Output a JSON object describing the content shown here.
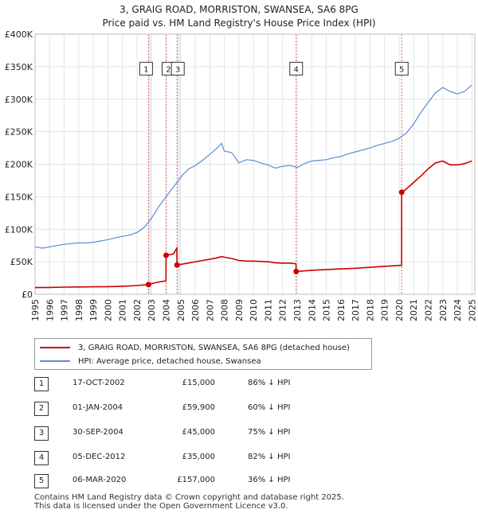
{
  "chart_data": {
    "type": "line",
    "title": "3, GRAIG ROAD, MORRISTON, SWANSEA, SA6 8PG",
    "subtitle": "Price paid vs. HM Land Registry's House Price Index (HPI)",
    "xlim": [
      1995,
      2025.2
    ],
    "ylim": [
      0,
      400000
    ],
    "x_ticks": [
      "1995",
      "1996",
      "1997",
      "1998",
      "1999",
      "2000",
      "2001",
      "2002",
      "2003",
      "2004",
      "2005",
      "2006",
      "2007",
      "2008",
      "2009",
      "2010",
      "2011",
      "2012",
      "2013",
      "2014",
      "2015",
      "2016",
      "2017",
      "2018",
      "2019",
      "2020",
      "2021",
      "2022",
      "2023",
      "2024",
      "2025"
    ],
    "y_ticks": [
      {
        "value": 0,
        "label": "£0"
      },
      {
        "value": 50000,
        "label": "£50K"
      },
      {
        "value": 100000,
        "label": "£100K"
      },
      {
        "value": 150000,
        "label": "£150K"
      },
      {
        "value": 200000,
        "label": "£200K"
      },
      {
        "value": 250000,
        "label": "£250K"
      },
      {
        "value": 300000,
        "label": "£300K"
      },
      {
        "value": 350000,
        "label": "£350K"
      },
      {
        "value": 400000,
        "label": "£400K"
      }
    ],
    "shade_ranges": [
      [
        2002.79,
        2003.0
      ],
      [
        2004.75,
        2005.0
      ]
    ],
    "series": [
      {
        "name": "HPI: Average price, detached house, Swansea",
        "color": "#5b8dd6",
        "points": [
          [
            1995.0,
            73000
          ],
          [
            1995.5,
            71000
          ],
          [
            1996.0,
            73000
          ],
          [
            1996.5,
            75000
          ],
          [
            1997.0,
            77000
          ],
          [
            1997.5,
            78000
          ],
          [
            1998.0,
            79000
          ],
          [
            1998.5,
            79000
          ],
          [
            1999.0,
            80000
          ],
          [
            1999.5,
            82000
          ],
          [
            2000.0,
            84000
          ],
          [
            2000.5,
            87000
          ],
          [
            2001.0,
            89000
          ],
          [
            2001.5,
            91000
          ],
          [
            2002.0,
            95000
          ],
          [
            2002.5,
            103000
          ],
          [
            2003.0,
            117000
          ],
          [
            2003.5,
            135000
          ],
          [
            2004.0,
            150000
          ],
          [
            2004.5,
            165000
          ],
          [
            2004.75,
            172000
          ],
          [
            2005.0,
            180000
          ],
          [
            2005.5,
            192000
          ],
          [
            2006.0,
            198000
          ],
          [
            2006.5,
            206000
          ],
          [
            2007.0,
            215000
          ],
          [
            2007.5,
            225000
          ],
          [
            2007.8,
            232000
          ],
          [
            2008.0,
            220000
          ],
          [
            2008.5,
            218000
          ],
          [
            2009.0,
            202000
          ],
          [
            2009.5,
            207000
          ],
          [
            2010.0,
            206000
          ],
          [
            2010.5,
            202000
          ],
          [
            2011.0,
            199000
          ],
          [
            2011.5,
            194000
          ],
          [
            2012.0,
            197000
          ],
          [
            2012.5,
            198000
          ],
          [
            2013.0,
            195000
          ],
          [
            2013.5,
            201000
          ],
          [
            2014.0,
            205000
          ],
          [
            2014.5,
            206000
          ],
          [
            2015.0,
            207000
          ],
          [
            2015.5,
            210000
          ],
          [
            2016.0,
            212000
          ],
          [
            2016.5,
            216000
          ],
          [
            2017.0,
            219000
          ],
          [
            2017.5,
            222000
          ],
          [
            2018.0,
            225000
          ],
          [
            2018.5,
            229000
          ],
          [
            2019.0,
            232000
          ],
          [
            2019.5,
            235000
          ],
          [
            2020.0,
            240000
          ],
          [
            2020.5,
            248000
          ],
          [
            2021.0,
            262000
          ],
          [
            2021.5,
            280000
          ],
          [
            2022.0,
            295000
          ],
          [
            2022.5,
            310000
          ],
          [
            2023.0,
            318000
          ],
          [
            2023.5,
            312000
          ],
          [
            2024.0,
            308000
          ],
          [
            2024.5,
            312000
          ],
          [
            2025.0,
            322000
          ]
        ]
      },
      {
        "name": "3, GRAIG ROAD, MORRISTON, SWANSEA, SA6 8PG (detached house)",
        "color": "#cc0000",
        "points": [
          [
            1995.0,
            10300
          ],
          [
            1996.0,
            10500
          ],
          [
            1997.0,
            11000
          ],
          [
            1998.0,
            11300
          ],
          [
            1999.0,
            11500
          ],
          [
            2000.0,
            11800
          ],
          [
            2001.0,
            12300
          ],
          [
            2002.0,
            13500
          ],
          [
            2002.79,
            15000
          ],
          [
            2003.0,
            16500
          ],
          [
            2003.5,
            19000
          ],
          [
            2003.99,
            20500
          ],
          [
            2004.0,
            59900
          ],
          [
            2004.5,
            62000
          ],
          [
            2004.74,
            71000
          ],
          [
            2004.75,
            45000
          ],
          [
            2005.0,
            46000
          ],
          [
            2005.5,
            48000
          ],
          [
            2006.0,
            50000
          ],
          [
            2006.5,
            52000
          ],
          [
            2007.0,
            54000
          ],
          [
            2007.5,
            56000
          ],
          [
            2007.8,
            58000
          ],
          [
            2008.0,
            57000
          ],
          [
            2008.5,
            55000
          ],
          [
            2009.0,
            52000
          ],
          [
            2009.5,
            51000
          ],
          [
            2010.0,
            51000
          ],
          [
            2010.5,
            50500
          ],
          [
            2011.0,
            50000
          ],
          [
            2011.5,
            48500
          ],
          [
            2012.0,
            48000
          ],
          [
            2012.5,
            48000
          ],
          [
            2012.92,
            47000
          ],
          [
            2012.93,
            35000
          ],
          [
            2013.5,
            36000
          ],
          [
            2014.0,
            37000
          ],
          [
            2015.0,
            38000
          ],
          [
            2016.0,
            39000
          ],
          [
            2017.0,
            40000
          ],
          [
            2018.0,
            41500
          ],
          [
            2019.0,
            43000
          ],
          [
            2020.17,
            44500
          ],
          [
            2020.18,
            157000
          ],
          [
            2020.5,
            162000
          ],
          [
            2021.0,
            172000
          ],
          [
            2021.5,
            182000
          ],
          [
            2022.0,
            193000
          ],
          [
            2022.5,
            202000
          ],
          [
            2023.0,
            205000
          ],
          [
            2023.5,
            199000
          ],
          [
            2024.0,
            199000
          ],
          [
            2024.5,
            201000
          ],
          [
            2025.0,
            205000
          ]
        ]
      }
    ],
    "sales": [
      {
        "label": "1",
        "x": 2002.79,
        "price": 15000
      },
      {
        "label": "2",
        "x": 2004.0,
        "price": 59900
      },
      {
        "label": "3",
        "x": 2004.75,
        "price": 45000
      },
      {
        "label": "4",
        "x": 2012.93,
        "price": 35000
      },
      {
        "label": "5",
        "x": 2020.18,
        "price": 157000
      }
    ],
    "marker_y_value": 347000
  },
  "legend": {
    "red_label": "3, GRAIG ROAD, MORRISTON, SWANSEA, SA6 8PG (detached house)",
    "blue_label": "HPI: Average price, detached house, Swansea"
  },
  "transactions": [
    {
      "num": "1",
      "date": "17-OCT-2002",
      "price": "£15,000",
      "hpi": "86% ↓ HPI"
    },
    {
      "num": "2",
      "date": "01-JAN-2004",
      "price": "£59,900",
      "hpi": "60% ↓ HPI"
    },
    {
      "num": "3",
      "date": "30-SEP-2004",
      "price": "£45,000",
      "hpi": "75% ↓ HPI"
    },
    {
      "num": "4",
      "date": "05-DEC-2012",
      "price": "£35,000",
      "hpi": "82% ↓ HPI"
    },
    {
      "num": "5",
      "date": "06-MAR-2020",
      "price": "£157,000",
      "hpi": "36% ↓ HPI"
    }
  ],
  "footer": {
    "line1": "Contains HM Land Registry data © Crown copyright and database right 2025.",
    "line2": "This data is licensed under the Open Government Licence v3.0."
  }
}
